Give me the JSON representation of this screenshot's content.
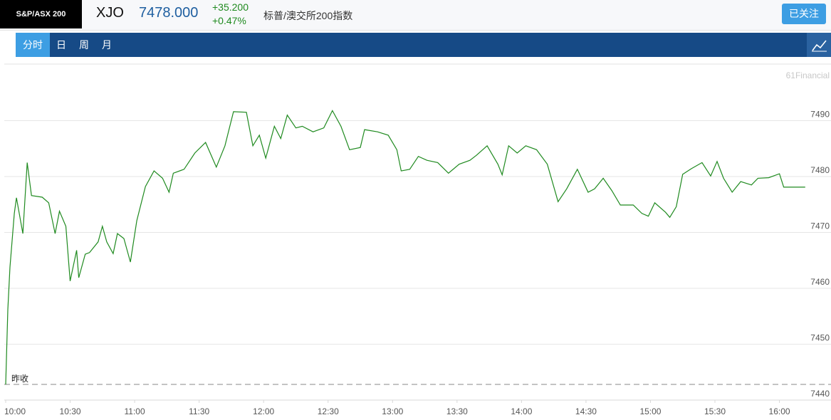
{
  "header": {
    "logo": "S&P/ASX 200",
    "symbol": "XJO",
    "price": "7478.000",
    "change": "+35.200",
    "change_pct": "+0.47%",
    "name": "标普/澳交所200指数",
    "button": "已关注"
  },
  "nav": {
    "tabs": [
      "分时",
      "日",
      "周",
      "月"
    ]
  },
  "watermark": "61Financial",
  "chart_data": {
    "type": "line",
    "color": "#1f8a1f",
    "x": [
      "10:00",
      "10:01",
      "10:02",
      "10:04",
      "10:05",
      "10:08",
      "10:10",
      "10:12",
      "10:17",
      "10:20",
      "10:23",
      "10:25",
      "10:28",
      "10:30",
      "10:33",
      "10:34",
      "10:37",
      "10:39",
      "10:43",
      "10:45",
      "10:47",
      "10:50",
      "10:52",
      "10:55",
      "10:58",
      "11:01",
      "11:05",
      "11:09",
      "11:13",
      "11:16",
      "11:18",
      "11:23",
      "11:28",
      "11:33",
      "11:38",
      "11:42",
      "11:46",
      "11:52",
      "11:55",
      "11:58",
      "12:01",
      "12:05",
      "12:08",
      "12:11",
      "12:15",
      "12:18",
      "12:23",
      "12:28",
      "12:32",
      "12:36",
      "12:40",
      "12:45",
      "12:47",
      "12:53",
      "12:58",
      "13:02",
      "13:04",
      "13:08",
      "13:12",
      "13:16",
      "13:21",
      "13:26",
      "13:31",
      "13:36",
      "13:39",
      "13:44",
      "13:49",
      "13:51",
      "13:54",
      "13:58",
      "14:02",
      "14:07",
      "14:12",
      "14:17",
      "14:21",
      "14:26",
      "14:31",
      "14:34",
      "14:38",
      "14:42",
      "14:46",
      "14:52",
      "14:56",
      "14:59",
      "15:02",
      "15:07",
      "15:09",
      "15:12",
      "15:15",
      "15:19",
      "15:24",
      "15:28",
      "15:31",
      "15:34",
      "15:38",
      "15:42",
      "15:47",
      "15:50",
      "15:55",
      "16:00",
      "16:02",
      "16:12"
    ],
    "values": [
      7442.8,
      7456.2,
      7463.8,
      7473.4,
      7476.2,
      7469.8,
      7482.5,
      7476.6,
      7476.3,
      7475.3,
      7469.8,
      7473.8,
      7471.1,
      7461.3,
      7466.8,
      7461.9,
      7466.1,
      7466.4,
      7468.3,
      7471.1,
      7468.3,
      7466.2,
      7469.8,
      7468.9,
      7464.7,
      7472.1,
      7478.2,
      7481.0,
      7479.7,
      7477.2,
      7480.6,
      7481.3,
      7484.2,
      7486.1,
      7481.7,
      7485.5,
      7491.6,
      7491.5,
      7485.5,
      7487.4,
      7483.3,
      7489.0,
      7486.8,
      7491.0,
      7488.7,
      7489.0,
      7488.0,
      7488.7,
      7491.8,
      7489.0,
      7484.8,
      7485.2,
      7488.4,
      7488.0,
      7487.4,
      7484.8,
      7481.0,
      7481.3,
      7483.6,
      7482.9,
      7482.5,
      7480.6,
      7482.2,
      7482.9,
      7483.8,
      7485.5,
      7482.2,
      7480.3,
      7485.5,
      7484.2,
      7485.5,
      7484.8,
      7482.2,
      7475.5,
      7477.8,
      7481.3,
      7477.2,
      7477.8,
      7479.7,
      7477.5,
      7474.9,
      7474.9,
      7473.4,
      7472.9,
      7475.3,
      7473.6,
      7472.7,
      7474.6,
      7480.4,
      7481.4,
      7482.5,
      7480.1,
      7482.7,
      7479.7,
      7477.2,
      7479.1,
      7478.5,
      7479.7,
      7479.8,
      7480.5,
      7478.1,
      7478.1
    ],
    "xlim": [
      "10:00",
      "16:24"
    ],
    "xticks": [
      "10:00",
      "10:30",
      "11:00",
      "11:30",
      "12:00",
      "12:30",
      "13:00",
      "13:30",
      "14:00",
      "14:30",
      "15:00",
      "15:30",
      "16:00"
    ],
    "ylim": [
      7440,
      7500
    ],
    "yticks": [
      7440,
      7450,
      7460,
      7470,
      7480,
      7490
    ],
    "grid": true,
    "prev_close": 7442.8,
    "prev_close_label": "昨收"
  }
}
